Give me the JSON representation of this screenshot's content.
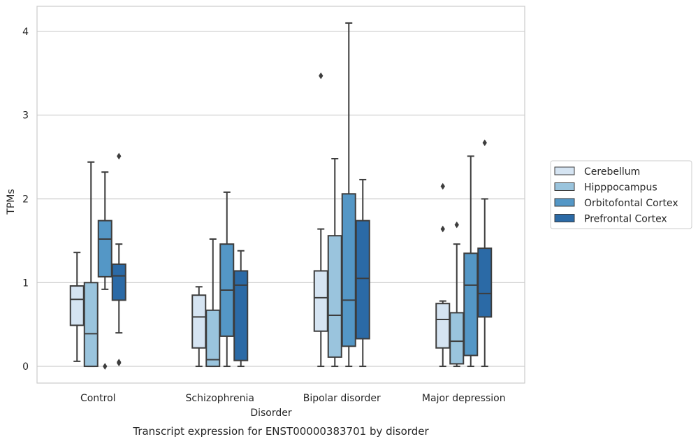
{
  "chart_data": {
    "type": "box",
    "caption": "Transcript expression for ENST00000383701 by disorder",
    "xlabel": "Disorder",
    "ylabel": "TPMs",
    "ylim": [
      -0.2,
      4.3
    ],
    "yticks": [
      0,
      1,
      2,
      3,
      4
    ],
    "grid": "horizontal",
    "legend_position": "right",
    "categories": [
      "Control",
      "Schizophrenia",
      "Bipolar disorder",
      "Major depression"
    ],
    "series": [
      {
        "name": "Cerebellum",
        "color": "#d5e4f2",
        "boxes": [
          {
            "whislo": 0.06,
            "q1": 0.49,
            "med": 0.8,
            "q3": 0.96,
            "whishi": 1.36,
            "fliers": []
          },
          {
            "whislo": 0.0,
            "q1": 0.22,
            "med": 0.59,
            "q3": 0.85,
            "whishi": 0.95,
            "fliers": []
          },
          {
            "whislo": 0.0,
            "q1": 0.42,
            "med": 0.82,
            "q3": 1.14,
            "whishi": 1.64,
            "fliers": [
              3.47
            ]
          },
          {
            "whislo": 0.0,
            "q1": 0.22,
            "med": 0.56,
            "q3": 0.75,
            "whishi": 0.78,
            "fliers": [
              2.15,
              1.64
            ]
          }
        ]
      },
      {
        "name": "Hipppocampus",
        "color": "#9ac4dd",
        "boxes": [
          {
            "whislo": 0.0,
            "q1": 0.0,
            "med": 0.39,
            "q3": 1.0,
            "whishi": 2.44,
            "fliers": []
          },
          {
            "whislo": 0.0,
            "q1": 0.0,
            "med": 0.08,
            "q3": 0.67,
            "whishi": 1.52,
            "fliers": []
          },
          {
            "whislo": 0.0,
            "q1": 0.11,
            "med": 0.61,
            "q3": 1.56,
            "whishi": 2.48,
            "fliers": []
          },
          {
            "whislo": 0.0,
            "q1": 0.03,
            "med": 0.3,
            "q3": 0.64,
            "whishi": 1.46,
            "fliers": [
              1.69
            ]
          }
        ]
      },
      {
        "name": "Orbitofontal Cortex",
        "color": "#5497c6",
        "boxes": [
          {
            "whislo": 0.92,
            "q1": 1.07,
            "med": 1.52,
            "q3": 1.74,
            "whishi": 2.32,
            "fliers": [
              0.0
            ]
          },
          {
            "whislo": 0.0,
            "q1": 0.36,
            "med": 0.91,
            "q3": 1.46,
            "whishi": 2.08,
            "fliers": []
          },
          {
            "whislo": 0.0,
            "q1": 0.24,
            "med": 0.79,
            "q3": 2.06,
            "whishi": 4.1,
            "fliers": []
          },
          {
            "whislo": 0.0,
            "q1": 0.13,
            "med": 0.97,
            "q3": 1.35,
            "whishi": 2.51,
            "fliers": []
          }
        ]
      },
      {
        "name": "Prefrontal Cortex",
        "color": "#2b6aa6",
        "boxes": [
          {
            "whislo": 0.4,
            "q1": 0.79,
            "med": 1.08,
            "q3": 1.22,
            "whishi": 1.46,
            "fliers": [
              2.51,
              0.05,
              0.04
            ]
          },
          {
            "whislo": 0.0,
            "q1": 0.07,
            "med": 0.97,
            "q3": 1.14,
            "whishi": 1.38,
            "fliers": []
          },
          {
            "whislo": 0.0,
            "q1": 0.33,
            "med": 1.05,
            "q3": 1.74,
            "whishi": 2.23,
            "fliers": []
          },
          {
            "whislo": 0.0,
            "q1": 0.59,
            "med": 0.87,
            "q3": 1.41,
            "whishi": 2.0,
            "fliers": [
              2.67
            ]
          }
        ]
      }
    ]
  }
}
